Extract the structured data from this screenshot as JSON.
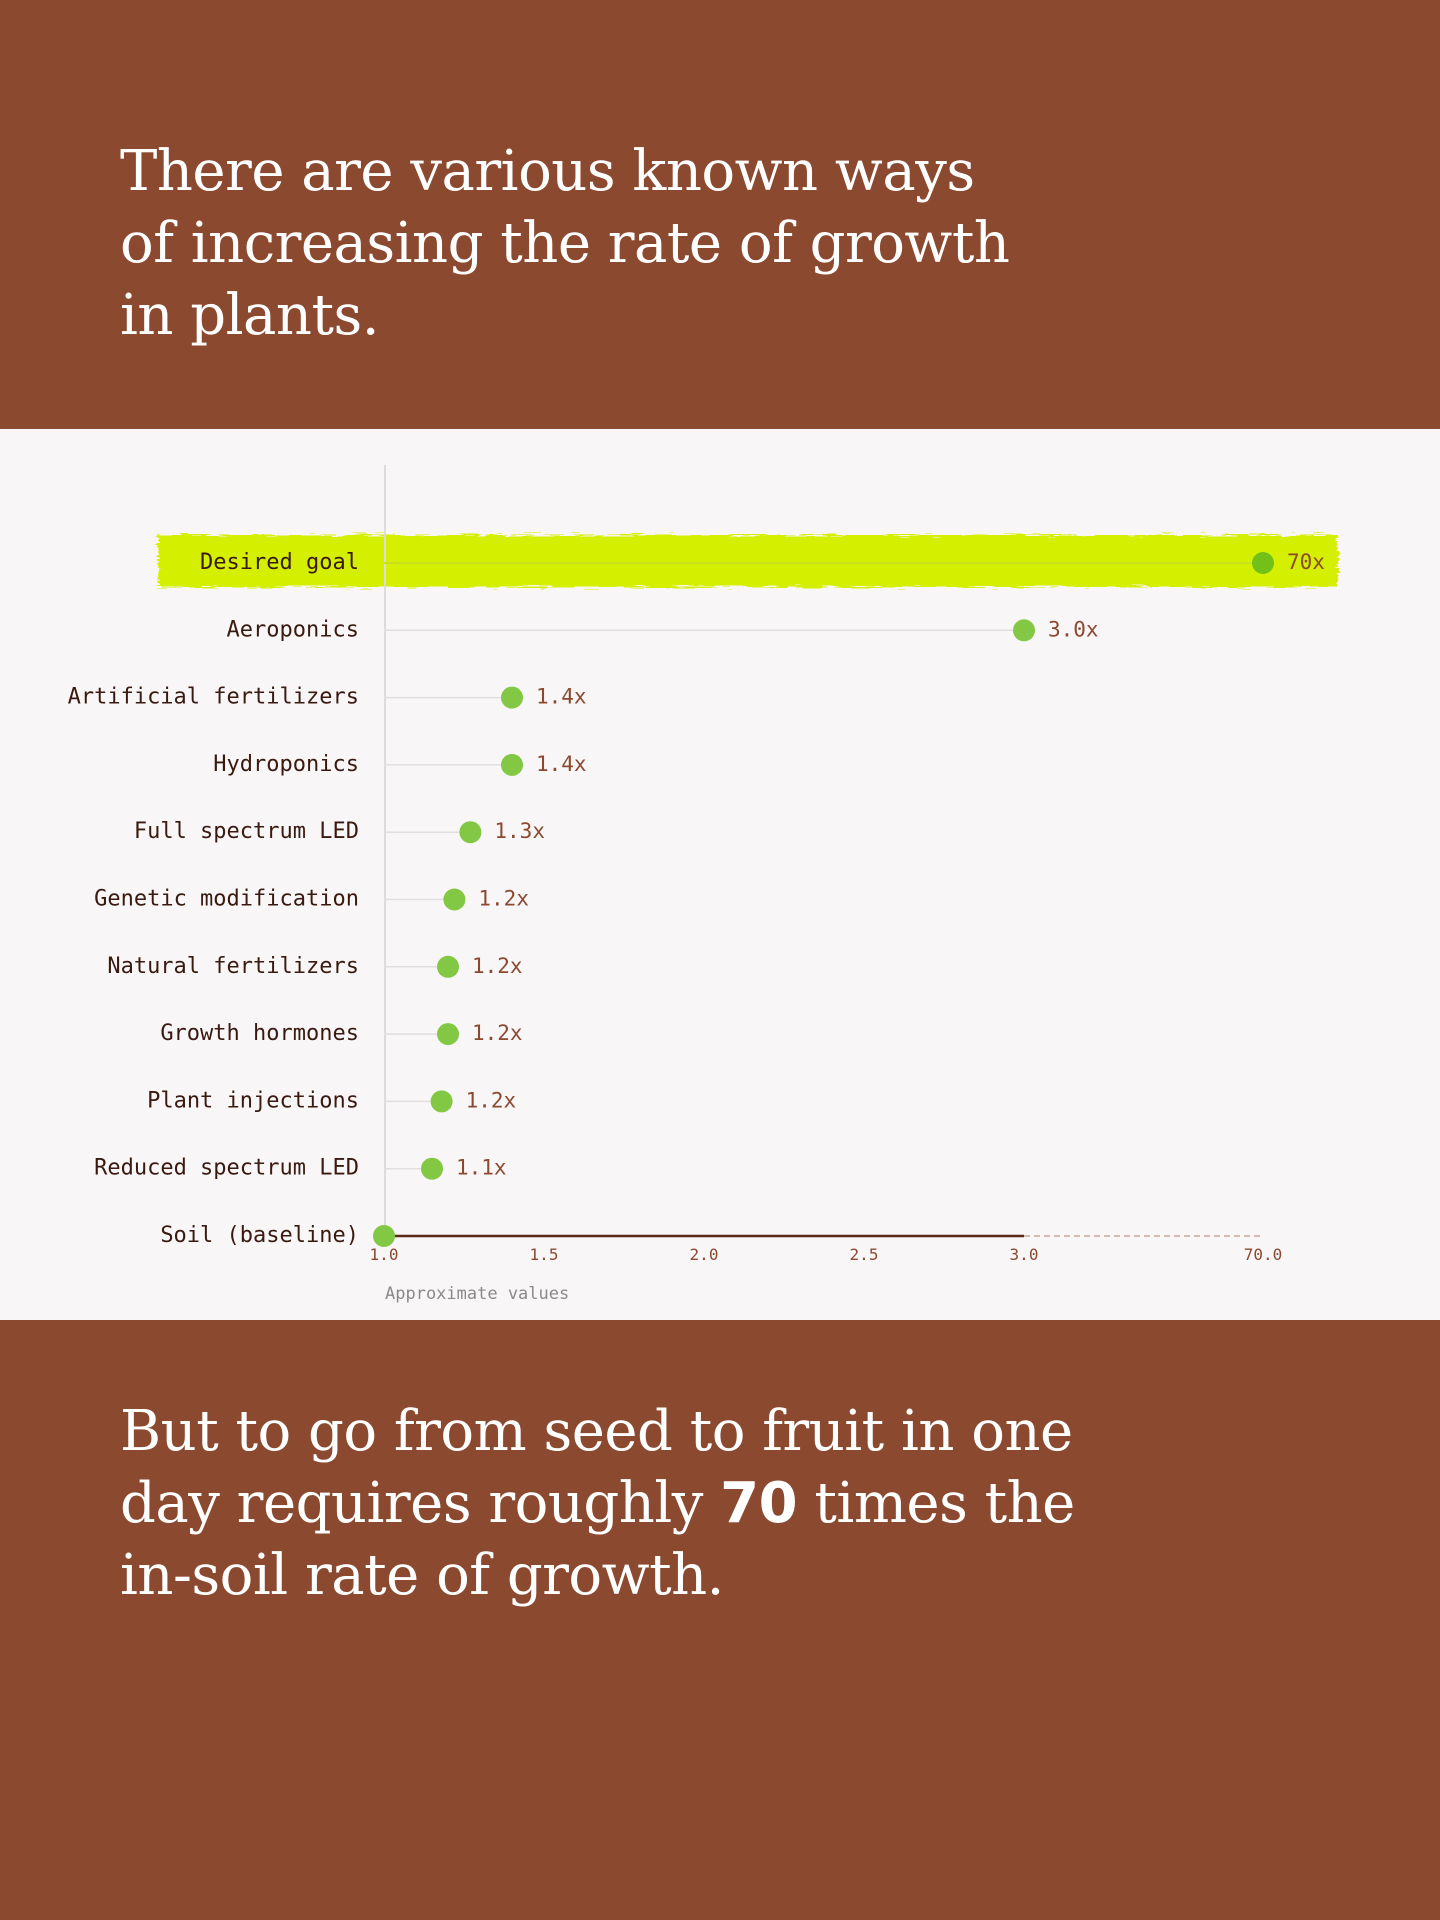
{
  "intro": {
    "text": "There are various known ways of increasing the rate of growth in plants."
  },
  "outro": {
    "before": "But to go from seed to fruit in one day requires roughly ",
    "number": "70",
    "after": " times the in-soil rate of growth."
  },
  "colors": {
    "background": "#8b4930",
    "panel": "#f8f6f6",
    "dot": "#82c844",
    "highlight": "#d4f000",
    "axis": "#5a2a1a"
  },
  "chart_data": {
    "type": "scatter",
    "subtype": "lollipop-horizontal",
    "axis_note": "Approximate values",
    "x_ticks": [
      "1.0",
      "1.5",
      "2.0",
      "2.5",
      "3.0",
      "70.0"
    ],
    "x_scale": "broken axis: linear 1.0–3.0, then jump to 70.0",
    "xlim": [
      1.0,
      70.0
    ],
    "grid": false,
    "points": [
      {
        "category": "Desired goal",
        "value": 70,
        "label": "70x",
        "highlight": true
      },
      {
        "category": "Aeroponics",
        "value": 3.0,
        "label": "3.0x"
      },
      {
        "category": "Artificial fertilizers",
        "value": 1.4,
        "label": "1.4x"
      },
      {
        "category": "Hydroponics",
        "value": 1.4,
        "label": "1.4x"
      },
      {
        "category": "Full spectrum LED",
        "value": 1.27,
        "label": "1.3x"
      },
      {
        "category": "Genetic modification",
        "value": 1.22,
        "label": "1.2x"
      },
      {
        "category": "Natural fertilizers",
        "value": 1.2,
        "label": "1.2x"
      },
      {
        "category": "Growth hormones",
        "value": 1.2,
        "label": "1.2x"
      },
      {
        "category": "Plant injections",
        "value": 1.18,
        "label": "1.2x"
      },
      {
        "category": "Reduced spectrum LED",
        "value": 1.15,
        "label": "1.1x"
      },
      {
        "category": "Soil (baseline)",
        "value": 1.0,
        "label": ""
      }
    ]
  }
}
